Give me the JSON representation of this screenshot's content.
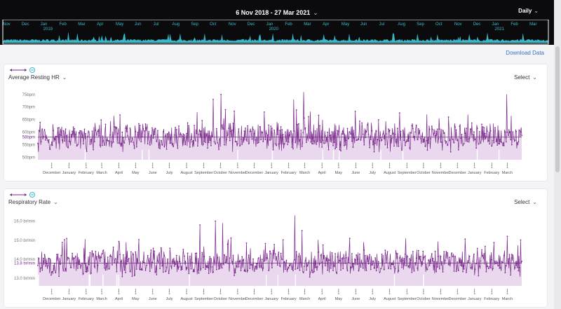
{
  "header": {
    "date_range": "6 Nov 2018 - 27 Mar 2021",
    "granularity": "Daily"
  },
  "overview": {
    "month_labels": [
      "Nov",
      "Dec",
      "Jan",
      "Feb",
      "Mar",
      "Apr",
      "May",
      "Jun",
      "Jul",
      "Aug",
      "Sep",
      "Oct",
      "Nov",
      "Dec",
      "Jan",
      "Feb",
      "Mar",
      "Apr",
      "May",
      "Jun",
      "Jul",
      "Aug",
      "Sep",
      "Oct",
      "Nov",
      "Dec",
      "Jan",
      "Feb",
      "Mar"
    ],
    "year_labels": [
      {
        "label": "2019",
        "month_index": 2
      },
      {
        "label": "2020",
        "month_index": 14
      },
      {
        "label": "2021",
        "month_index": 26
      }
    ],
    "colors": {
      "background": "#0b0b0d",
      "series": "#3bb8c8",
      "text": "#3bb8c8"
    }
  },
  "download_label": "Download Data",
  "x_axis": {
    "start_date": "2018-11-06",
    "end_date": "2021-03-27",
    "tick_months": [
      "2018-12",
      "2019-01",
      "2019-02",
      "2019-03",
      "2019-04",
      "2019-05",
      "2019-06",
      "2019-07",
      "2019-08",
      "2019-09",
      "2019-10",
      "2019-11",
      "2019-12",
      "2020-01",
      "2020-02",
      "2020-03",
      "2020-04",
      "2020-05",
      "2020-06",
      "2020-07",
      "2020-08",
      "2020-09",
      "2020-10",
      "2020-11",
      "2020-12",
      "2021-01",
      "2021-02",
      "2021-03"
    ],
    "tick_labels": [
      "December",
      "January",
      "February",
      "March",
      "April",
      "May",
      "June",
      "July",
      "August",
      "September",
      "October",
      "November",
      "December",
      "January",
      "February",
      "March",
      "April",
      "May",
      "June",
      "July",
      "August",
      "September",
      "October",
      "November",
      "December",
      "January",
      "February",
      "March"
    ],
    "tick_mark": "1"
  },
  "chart_data": [
    {
      "type": "line",
      "title": "Average Resting HR",
      "select_label": "Select",
      "y_ticks": [
        {
          "value": 50,
          "label": "50bpm"
        },
        {
          "value": 55,
          "label": "55bpm"
        },
        {
          "value": 60,
          "label": "60bpm"
        },
        {
          "value": 65,
          "label": "65bpm"
        },
        {
          "value": 70,
          "label": "70bpm"
        },
        {
          "value": 75,
          "label": "75bpm"
        }
      ],
      "ylim": [
        49,
        78
      ],
      "baseline": {
        "value": 58,
        "label": "58bpm"
      },
      "typical_range": [
        53,
        63
      ],
      "spikes": [
        {
          "date": "2019-08-20",
          "value": 68
        },
        {
          "date": "2019-09-18",
          "value": 73
        },
        {
          "date": "2019-10-02",
          "value": 75
        },
        {
          "date": "2020-02-10",
          "value": 73
        },
        {
          "date": "2020-02-28",
          "value": 76
        },
        {
          "date": "2020-11-15",
          "value": 66
        },
        {
          "date": "2020-12-20",
          "value": 67
        },
        {
          "date": "2021-02-28",
          "value": 75
        }
      ],
      "colors": {
        "line": "#7b2a8c",
        "fill": "#e9d8ee",
        "baseline": "#6a2f7a",
        "axis_text": "#7b2a8c"
      }
    },
    {
      "type": "line",
      "title": "Respiratory Rate",
      "select_label": "Select",
      "y_ticks": [
        {
          "value": 13.0,
          "label": "13.0 br/min"
        },
        {
          "value": 14.0,
          "label": "14.0 br/min"
        },
        {
          "value": 15.0,
          "label": "15.0 br/min"
        },
        {
          "value": 16.0,
          "label": "16.0 br/min"
        }
      ],
      "ylim": [
        12.6,
        16.5
      ],
      "baseline": {
        "value": 13.8,
        "label": "13.8 br/min"
      },
      "typical_range": [
        13.2,
        14.4
      ],
      "spikes": [
        {
          "date": "2019-08-25",
          "value": 15.8
        },
        {
          "date": "2019-09-22",
          "value": 16.0
        },
        {
          "date": "2019-10-05",
          "value": 15.9
        },
        {
          "date": "2020-02-12",
          "value": 16.3
        },
        {
          "date": "2020-02-25",
          "value": 15.5
        },
        {
          "date": "2020-06-15",
          "value": 14.9
        },
        {
          "date": "2021-03-01",
          "value": 15.2
        }
      ],
      "colors": {
        "line": "#7b2a8c",
        "fill": "#e9d8ee",
        "baseline": "#6a2f7a",
        "axis_text": "#7b2a8c"
      }
    }
  ]
}
